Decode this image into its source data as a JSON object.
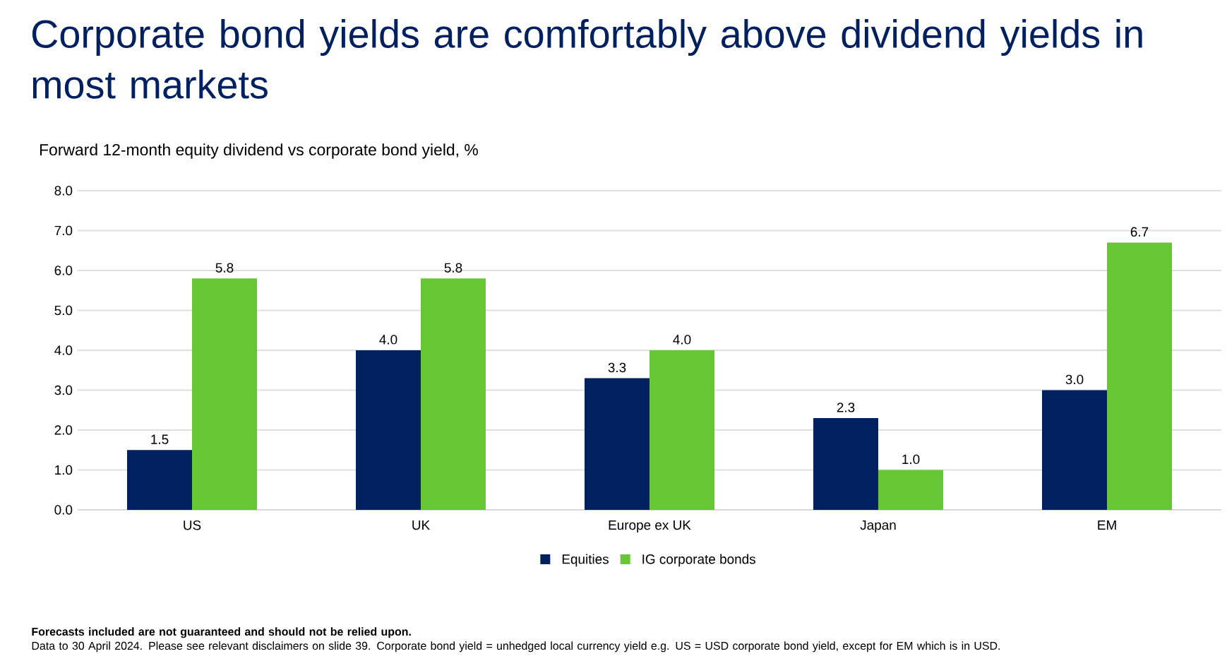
{
  "chart_data": {
    "type": "bar",
    "title": "Corporate bond yields are comfortably above dividend yields in most markets",
    "subtitle": "Forward 12-month equity dividend vs corporate bond yield, %",
    "categories": [
      "US",
      "UK",
      "Europe ex UK",
      "Japan",
      "EM"
    ],
    "series": [
      {
        "name": "Equities",
        "color": "#00205f",
        "values": [
          1.5,
          4.0,
          3.3,
          2.3,
          3.0
        ],
        "value_labels": [
          "1.5",
          "4.0",
          "3.3",
          "2.3",
          "3.0"
        ]
      },
      {
        "name": "IG corporate bonds",
        "color": "#66c633",
        "values": [
          5.8,
          5.8,
          4.0,
          1.0,
          6.7
        ],
        "value_labels": [
          "5.8",
          "5.8",
          "4.0",
          "1.0",
          "6.7"
        ]
      }
    ],
    "ylim": [
      0,
      8
    ],
    "yticks": [
      {
        "value": 0,
        "label": "0.0"
      },
      {
        "value": 1,
        "label": "1.0"
      },
      {
        "value": 2,
        "label": "2.0"
      },
      {
        "value": 3,
        "label": "3.0"
      },
      {
        "value": 4,
        "label": "4.0"
      },
      {
        "value": 5,
        "label": "5.0"
      },
      {
        "value": 6,
        "label": "6.0"
      },
      {
        "value": 7,
        "label": "7.0"
      },
      {
        "value": 8,
        "label": "8.0"
      }
    ],
    "grid": "y",
    "legend": "bottom",
    "annotations": [
      "Forecasts included are not guaranteed and should not be relied upon.",
      "Data to 30 April 2024. Please see relevant disclaimers on slide 39. Corporate bond yield = unhedged local currency yield e.g. US = USD corporate bond yield, except for EM which is in USD."
    ]
  }
}
